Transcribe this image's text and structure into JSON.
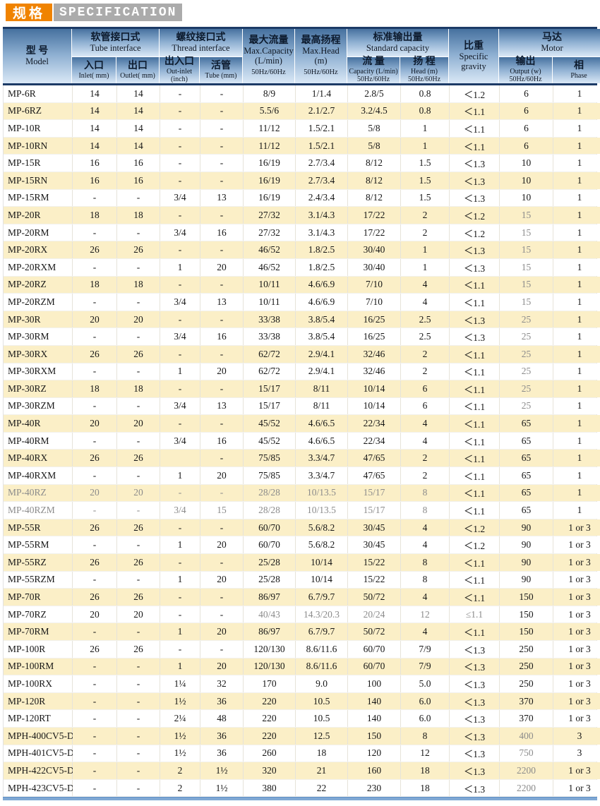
{
  "title": {
    "zh": "规格",
    "en": "SPECIFICATION"
  },
  "colors": {
    "orange": "#F08300",
    "gray": "#ABABAB",
    "row_alt": "#FBEFC7",
    "header_navy": "#1C3A66",
    "bottom_bar": "#7FA8D4",
    "muted_text": "#8B8B8B"
  },
  "table": {
    "header": {
      "model": {
        "zh": "型 号",
        "en": "Model"
      },
      "tube_interface": {
        "zh": "软管接口式",
        "en": "Tube interface"
      },
      "thread_interface": {
        "zh": "螺纹接口式",
        "en": "Thread interface"
      },
      "max_capacity": {
        "zh": "最大流量",
        "en": "Max.Capacity",
        "unit": "(L/min)",
        "hz": "50Hz/60Hz"
      },
      "max_head": {
        "zh": "最高扬程",
        "en": "Max.Head",
        "unit": "(m)",
        "hz": "50Hz/60Hz"
      },
      "standard_capacity": {
        "zh": "标准输出量",
        "en": "Standard capacity"
      },
      "specific_gravity": {
        "zh": "比重",
        "en": "Specific gravity"
      },
      "motor": {
        "zh": "马达",
        "en": "Motor"
      },
      "sub": {
        "inlet": {
          "zh": "入口",
          "en": "Inlet( mm)"
        },
        "outlet": {
          "zh": "出口",
          "en": "Outlet( mm)"
        },
        "out_inlet": {
          "zh": "出入口",
          "en": "Out-inlet",
          "unit": "(inch)"
        },
        "tube": {
          "zh": "活管",
          "en": "Tube (mm)"
        },
        "capacity": {
          "zh": "流 量",
          "en": "Capacity (L/min)",
          "hz": "50Hz/60Hz"
        },
        "head": {
          "zh": "扬 程",
          "en": "Head (m)",
          "hz": "50Hz/60Hz"
        },
        "output": {
          "zh": "输出",
          "en": "Output (w)",
          "hz": "50Hz/60Hz"
        },
        "phase": {
          "zh": "相",
          "en": "Phase"
        }
      }
    },
    "rows": [
      {
        "model": "MP-6R",
        "values": [
          "14",
          "14",
          "-",
          "-",
          "8/9",
          "1/1.4",
          "2.8/5",
          "0.8",
          "＜1.2",
          "6",
          "1"
        ]
      },
      {
        "model": "MP-6RZ",
        "values": [
          "14",
          "14",
          "-",
          "-",
          "5.5/6",
          "2.1/2.7",
          "3.2/4.5",
          "0.8",
          "＜1.1",
          "6",
          "1"
        ]
      },
      {
        "model": "MP-10R",
        "values": [
          "14",
          "14",
          "-",
          "-",
          "11/12",
          "1.5/2.1",
          "5/8",
          "1",
          "＜1.1",
          "6",
          "1"
        ]
      },
      {
        "model": "MP-10RN",
        "values": [
          "14",
          "14",
          "-",
          "-",
          "11/12",
          "1.5/2.1",
          "5/8",
          "1",
          "＜1.1",
          "6",
          "1"
        ]
      },
      {
        "model": "MP-15R",
        "values": [
          "16",
          "16",
          "-",
          "-",
          "16/19",
          "2.7/3.4",
          "8/12",
          "1.5",
          "＜1.3",
          "10",
          "1"
        ]
      },
      {
        "model": "MP-15RN",
        "values": [
          "16",
          "16",
          "-",
          "-",
          "16/19",
          "2.7/3.4",
          "8/12",
          "1.5",
          "＜1.3",
          "10",
          "1"
        ]
      },
      {
        "model": "MP-15RM",
        "values": [
          "-",
          "-",
          "3/4",
          "13",
          "16/19",
          "2.4/3.4",
          "8/12",
          "1.5",
          "＜1.3",
          "10",
          "1"
        ]
      },
      {
        "model": "MP-20R",
        "values": [
          "18",
          "18",
          "-",
          "-",
          "27/32",
          "3.1/4.3",
          "17/22",
          "2",
          "＜1.2",
          "15",
          "1"
        ],
        "muted": [
          10
        ]
      },
      {
        "model": "MP-20RM",
        "values": [
          "-",
          "-",
          "3/4",
          "16",
          "27/32",
          "3.1/4.3",
          "17/22",
          "2",
          "＜1.2",
          "15",
          "1"
        ],
        "muted": [
          10
        ]
      },
      {
        "model": "MP-20RX",
        "values": [
          "26",
          "26",
          "-",
          "-",
          "46/52",
          "1.8/2.5",
          "30/40",
          "1",
          "＜1.3",
          "15",
          "1"
        ],
        "muted": [
          10
        ]
      },
      {
        "model": "MP-20RXM",
        "values": [
          "-",
          "-",
          "1",
          "20",
          "46/52",
          "1.8/2.5",
          "30/40",
          "1",
          "＜1.3",
          "15",
          "1"
        ],
        "muted": [
          10
        ]
      },
      {
        "model": "MP-20RZ",
        "values": [
          "18",
          "18",
          "-",
          "-",
          "10/11",
          "4.6/6.9",
          "7/10",
          "4",
          "＜1.1",
          "15",
          "1"
        ],
        "muted": [
          10
        ]
      },
      {
        "model": "MP-20RZM",
        "values": [
          "-",
          "-",
          "3/4",
          "13",
          "10/11",
          "4.6/6.9",
          "7/10",
          "4",
          "＜1.1",
          "15",
          "1"
        ],
        "muted": [
          10
        ]
      },
      {
        "model": "MP-30R",
        "values": [
          "20",
          "20",
          "-",
          "-",
          "33/38",
          "3.8/5.4",
          "16/25",
          "2.5",
          "＜1.3",
          "25",
          "1"
        ],
        "muted": [
          10
        ]
      },
      {
        "model": "MP-30RM",
        "values": [
          "-",
          "-",
          "3/4",
          "16",
          "33/38",
          "3.8/5.4",
          "16/25",
          "2.5",
          "＜1.3",
          "25",
          "1"
        ],
        "muted": [
          10
        ]
      },
      {
        "model": "MP-30RX",
        "values": [
          "26",
          "26",
          "-",
          "-",
          "62/72",
          "2.9/4.1",
          "32/46",
          "2",
          "＜1.1",
          "25",
          "1"
        ],
        "muted": [
          10
        ]
      },
      {
        "model": "MP-30RXM",
        "values": [
          "-",
          "-",
          "1",
          "20",
          "62/72",
          "2.9/4.1",
          "32/46",
          "2",
          "＜1.1",
          "25",
          "1"
        ],
        "muted": [
          10
        ]
      },
      {
        "model": "MP-30RZ",
        "values": [
          "18",
          "18",
          "-",
          "-",
          "15/17",
          "8/11",
          "10/14",
          "6",
          "＜1.1",
          "25",
          "1"
        ],
        "muted": [
          10
        ]
      },
      {
        "model": "MP-30RZM",
        "values": [
          "-",
          "-",
          "3/4",
          "13",
          "15/17",
          "8/11",
          "10/14",
          "6",
          "＜1.1",
          "25",
          "1"
        ],
        "muted": [
          10
        ]
      },
      {
        "model": "MP-40R",
        "values": [
          "20",
          "20",
          "-",
          "-",
          "45/52",
          "4.6/6.5",
          "22/34",
          "4",
          "＜1.1",
          "65",
          "1"
        ]
      },
      {
        "model": "MP-40RM",
        "values": [
          "-",
          "-",
          "3/4",
          "16",
          "45/52",
          "4.6/6.5",
          "22/34",
          "4",
          "＜1.1",
          "65",
          "1"
        ]
      },
      {
        "model": "MP-40RX",
        "values": [
          "26",
          "26",
          "",
          "-",
          "75/85",
          "3.3/4.7",
          "47/65",
          "2",
          "＜1.1",
          "65",
          "1"
        ]
      },
      {
        "model": "MP-40RXM",
        "values": [
          "-",
          "-",
          "1",
          "20",
          "75/85",
          "3.3/4.7",
          "47/65",
          "2",
          "＜1.1",
          "65",
          "1"
        ]
      },
      {
        "model": "MP-40RZ",
        "values": [
          "20",
          "20",
          "-",
          "-",
          "28/28",
          "10/13.5",
          "15/17",
          "8",
          "＜1.1",
          "65",
          "1"
        ],
        "muted": [
          0,
          1,
          2,
          3,
          4,
          5,
          6,
          7,
          8
        ]
      },
      {
        "model": "MP-40RZM",
        "values": [
          "-",
          "-",
          "3/4",
          "15",
          "28/28",
          "10/13.5",
          "15/17",
          "8",
          "＜1.1",
          "65",
          "1"
        ],
        "muted": [
          0,
          1,
          2,
          3,
          4,
          5,
          6,
          7,
          8
        ]
      },
      {
        "model": "MP-55R",
        "values": [
          "26",
          "26",
          "-",
          "-",
          "60/70",
          "5.6/8.2",
          "30/45",
          "4",
          "＜1.2",
          "90",
          "1 or 3"
        ]
      },
      {
        "model": "MP-55RM",
        "values": [
          "-",
          "-",
          "1",
          "20",
          "60/70",
          "5.6/8.2",
          "30/45",
          "4",
          "＜1.2",
          "90",
          "1 or 3"
        ]
      },
      {
        "model": "MP-55RZ",
        "values": [
          "26",
          "26",
          "-",
          "-",
          "25/28",
          "10/14",
          "15/22",
          "8",
          "＜1.1",
          "90",
          "1 or 3"
        ]
      },
      {
        "model": "MP-55RZM",
        "values": [
          "-",
          "-",
          "1",
          "20",
          "25/28",
          "10/14",
          "15/22",
          "8",
          "＜1.1",
          "90",
          "1 or 3"
        ]
      },
      {
        "model": "MP-70R",
        "values": [
          "26",
          "26",
          "-",
          "-",
          "86/97",
          "6.7/9.7",
          "50/72",
          "4",
          "＜1.1",
          "150",
          "1 or 3"
        ]
      },
      {
        "model": "MP-70RZ",
        "values": [
          "20",
          "20",
          "-",
          "-",
          "40/43",
          "14.3/20.3",
          "20/24",
          "12",
          "≤1.1",
          "150",
          "1 or 3"
        ],
        "muted": [
          5,
          6,
          7,
          8,
          9
        ]
      },
      {
        "model": "MP-70RM",
        "values": [
          "-",
          "-",
          "1",
          "20",
          "86/97",
          "6.7/9.7",
          "50/72",
          "4",
          "＜1.1",
          "150",
          "1 or 3"
        ]
      },
      {
        "model": "MP-100R",
        "values": [
          "26",
          "26",
          "-",
          "-",
          "120/130",
          "8.6/11.6",
          "60/70",
          "7/9",
          "＜1.3",
          "250",
          "1 or 3"
        ]
      },
      {
        "model": "MP-100RM",
        "values": [
          "-",
          "-",
          "1",
          "20",
          "120/130",
          "8.6/11.6",
          "60/70",
          "7/9",
          "＜1.3",
          "250",
          "1 or 3"
        ]
      },
      {
        "model": "MP-100RX",
        "values": [
          "-",
          "-",
          "1¼",
          "32",
          "170",
          "9.0",
          "100",
          "5.0",
          "＜1.3",
          "250",
          "1 or 3"
        ]
      },
      {
        "model": "MP-120R",
        "values": [
          "-",
          "-",
          "1½",
          "36",
          "220",
          "10.5",
          "140",
          "6.0",
          "＜1.3",
          "370",
          "1 or 3"
        ]
      },
      {
        "model": "MP-120RT",
        "values": [
          "-",
          "-",
          "2¼",
          "48",
          "220",
          "10.5",
          "140",
          "6.0",
          "＜1.3",
          "370",
          "1 or 3"
        ]
      },
      {
        "model": "MPH-400CV5-D",
        "values": [
          "-",
          "-",
          "1½",
          "36",
          "220",
          "12.5",
          "150",
          "8",
          "＜1.3",
          "400",
          "3"
        ],
        "muted": [
          10
        ]
      },
      {
        "model": "MPH-401CV5-D",
        "values": [
          "-",
          "-",
          "1½",
          "36",
          "260",
          "18",
          "120",
          "12",
          "＜1.3",
          "750",
          "3"
        ],
        "muted": [
          10
        ]
      },
      {
        "model": "MPH-422CV5-D",
        "values": [
          "-",
          "-",
          "2",
          "1½",
          "320",
          "21",
          "160",
          "18",
          "＜1.3",
          "2200",
          "1 or 3"
        ],
        "muted": [
          10
        ]
      },
      {
        "model": "MPH-423CV5-D",
        "values": [
          "-",
          "-",
          "2",
          "1½",
          "380",
          "22",
          "230",
          "18",
          "＜1.3",
          "2200",
          "1 or 3"
        ],
        "muted": [
          10
        ]
      }
    ]
  }
}
